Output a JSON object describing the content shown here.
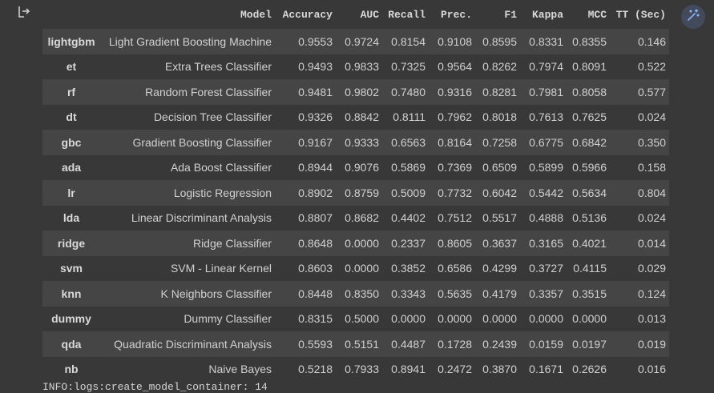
{
  "icons": {
    "output_icon": "output-redirect-icon",
    "magic_icon": "magic-wand-icon",
    "accent": "#8ab4f8"
  },
  "table": {
    "columns": [
      "Model",
      "Accuracy",
      "AUC",
      "Recall",
      "Prec.",
      "F1",
      "Kappa",
      "MCC",
      "TT (Sec)"
    ],
    "rows": [
      {
        "id": "lightgbm",
        "cells": [
          "Light Gradient Boosting Machine",
          "0.9553",
          "0.9724",
          "0.8154",
          "0.9108",
          "0.8595",
          "0.8331",
          "0.8355",
          "0.146"
        ]
      },
      {
        "id": "et",
        "cells": [
          "Extra Trees Classifier",
          "0.9493",
          "0.9833",
          "0.7325",
          "0.9564",
          "0.8262",
          "0.7974",
          "0.8091",
          "0.522"
        ]
      },
      {
        "id": "rf",
        "cells": [
          "Random Forest Classifier",
          "0.9481",
          "0.9802",
          "0.7480",
          "0.9316",
          "0.8281",
          "0.7981",
          "0.8058",
          "0.577"
        ]
      },
      {
        "id": "dt",
        "cells": [
          "Decision Tree Classifier",
          "0.9326",
          "0.8842",
          "0.8111",
          "0.7962",
          "0.8018",
          "0.7613",
          "0.7625",
          "0.024"
        ]
      },
      {
        "id": "gbc",
        "cells": [
          "Gradient Boosting Classifier",
          "0.9167",
          "0.9333",
          "0.6563",
          "0.8164",
          "0.7258",
          "0.6775",
          "0.6842",
          "0.350"
        ]
      },
      {
        "id": "ada",
        "cells": [
          "Ada Boost Classifier",
          "0.8944",
          "0.9076",
          "0.5869",
          "0.7369",
          "0.6509",
          "0.5899",
          "0.5966",
          "0.158"
        ]
      },
      {
        "id": "lr",
        "cells": [
          "Logistic Regression",
          "0.8902",
          "0.8759",
          "0.5009",
          "0.7732",
          "0.6042",
          "0.5442",
          "0.5634",
          "0.804"
        ]
      },
      {
        "id": "lda",
        "cells": [
          "Linear Discriminant Analysis",
          "0.8807",
          "0.8682",
          "0.4402",
          "0.7512",
          "0.5517",
          "0.4888",
          "0.5136",
          "0.024"
        ]
      },
      {
        "id": "ridge",
        "cells": [
          "Ridge Classifier",
          "0.8648",
          "0.0000",
          "0.2337",
          "0.8605",
          "0.3637",
          "0.3165",
          "0.4021",
          "0.014"
        ]
      },
      {
        "id": "svm",
        "cells": [
          "SVM - Linear Kernel",
          "0.8603",
          "0.0000",
          "0.3852",
          "0.6586",
          "0.4299",
          "0.3727",
          "0.4115",
          "0.029"
        ]
      },
      {
        "id": "knn",
        "cells": [
          "K Neighbors Classifier",
          "0.8448",
          "0.8350",
          "0.3343",
          "0.5635",
          "0.4179",
          "0.3357",
          "0.3515",
          "0.124"
        ]
      },
      {
        "id": "dummy",
        "cells": [
          "Dummy Classifier",
          "0.8315",
          "0.5000",
          "0.0000",
          "0.0000",
          "0.0000",
          "0.0000",
          "0.0000",
          "0.013"
        ]
      },
      {
        "id": "qda",
        "cells": [
          "Quadratic Discriminant Analysis",
          "0.5593",
          "0.5151",
          "0.4487",
          "0.1728",
          "0.2439",
          "0.0159",
          "0.0197",
          "0.019"
        ]
      },
      {
        "id": "nb",
        "cells": [
          "Naive Bayes",
          "0.5218",
          "0.7933",
          "0.8941",
          "0.2472",
          "0.3870",
          "0.1671",
          "0.2626",
          "0.016"
        ]
      }
    ]
  },
  "log_line": "INFO:logs:create_model_container: 14"
}
